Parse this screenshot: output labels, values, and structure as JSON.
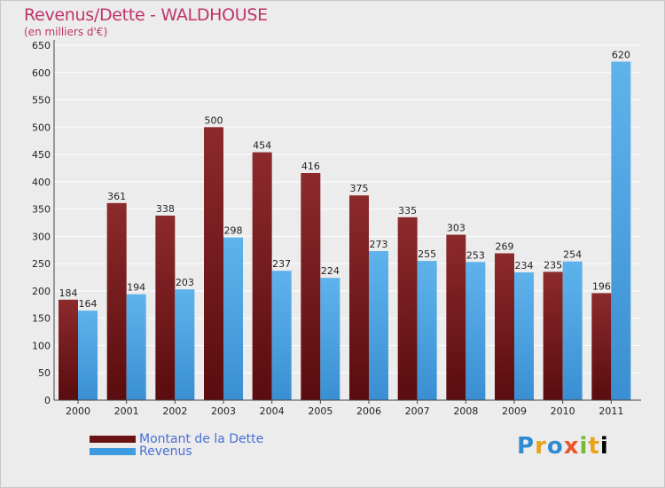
{
  "title": "Revenus/Dette - WALDHOUSE",
  "subtitle": "(en milliers d'€)",
  "colors": {
    "dette": "#7a1a1c",
    "revenus": "#4ea6e6",
    "axis_text": "#222222",
    "grid": "#ffffff"
  },
  "legend": {
    "dette_label": "Montant de la Dette",
    "revenus_label": "Revenus"
  },
  "logo_letters": [
    "P",
    "r",
    "o",
    "x",
    "i",
    "t",
    "i"
  ],
  "chart_data": {
    "type": "bar",
    "title": "Revenus/Dette - WALDHOUSE",
    "ylabel": "(en milliers d'€)",
    "xlabel": "",
    "ylim": [
      0,
      650
    ],
    "yticks": [
      0,
      50,
      100,
      150,
      200,
      250,
      300,
      350,
      400,
      450,
      500,
      550,
      600,
      650
    ],
    "categories": [
      "2000",
      "2001",
      "2002",
      "2003",
      "2004",
      "2005",
      "2006",
      "2007",
      "2008",
      "2009",
      "2010",
      "2011"
    ],
    "series": [
      {
        "name": "Montant de la Dette",
        "values": [
          184,
          361,
          338,
          500,
          454,
          416,
          375,
          335,
          303,
          269,
          235,
          196
        ]
      },
      {
        "name": "Revenus",
        "values": [
          164,
          194,
          203,
          298,
          237,
          224,
          273,
          255,
          253,
          234,
          254,
          620
        ]
      }
    ],
    "grid": true,
    "legend_position": "bottom-left"
  }
}
